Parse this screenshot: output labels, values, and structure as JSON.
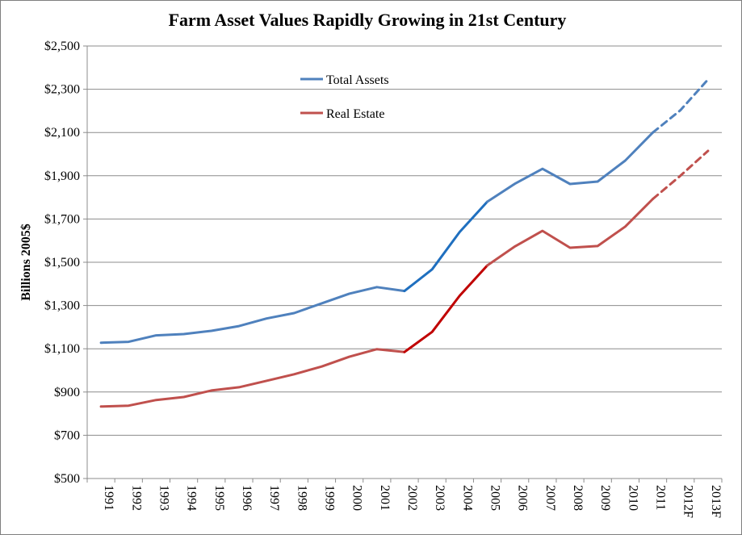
{
  "chart_data": {
    "type": "line",
    "title": "Farm Asset Values Rapidly Growing in 21st Century",
    "ylabel": "Billions 2005$",
    "xlabel": "",
    "categories": [
      "1991",
      "1992",
      "1993",
      "1994",
      "1995",
      "1996",
      "1997",
      "1998",
      "1999",
      "2000",
      "2001",
      "2002",
      "2003",
      "2004",
      "2005",
      "2006",
      "2007",
      "2008",
      "2009",
      "2010",
      "2011",
      "2012F",
      "2013F"
    ],
    "ylim": [
      500,
      2500
    ],
    "yticks": [
      500,
      700,
      900,
      1100,
      1300,
      1500,
      1700,
      1900,
      2100,
      2300,
      2500
    ],
    "ytick_labels": [
      "$500",
      "$700",
      "$900",
      "$1,100",
      "$1,300",
      "$1,500",
      "$1,700",
      "$1,900",
      "$2,100",
      "$2,300",
      "$2,500"
    ],
    "grid": true,
    "legend_position": "top-center",
    "forecast_start_index": 20,
    "series": [
      {
        "name": "Total Assets",
        "color": "#4f81bd",
        "highlight_color": "#1f6fbf",
        "values": [
          1128,
          1132,
          1162,
          1168,
          1183,
          1205,
          1240,
          1265,
          1310,
          1355,
          1385,
          1367,
          1467,
          1640,
          1780,
          1863,
          1932,
          1862,
          1873,
          1970,
          2100,
          2203,
          2345
        ]
      },
      {
        "name": "Real Estate",
        "color": "#c0504d",
        "highlight_color": "#c00000",
        "values": [
          833,
          837,
          863,
          877,
          907,
          922,
          952,
          982,
          1018,
          1063,
          1098,
          1085,
          1178,
          1345,
          1485,
          1573,
          1645,
          1567,
          1575,
          1665,
          1793,
          1900,
          2015
        ]
      }
    ],
    "highlight_range": [
      11,
      14
    ]
  }
}
